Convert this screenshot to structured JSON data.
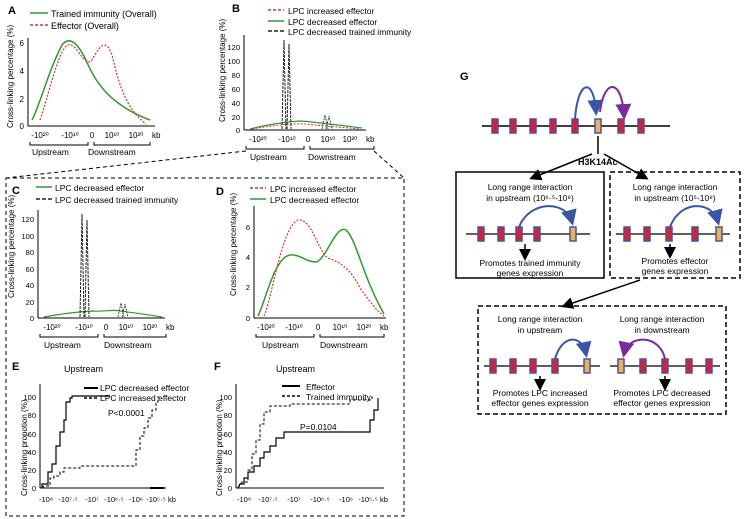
{
  "panels": {
    "A": {
      "label": "A",
      "legend": [
        "Trained immunity (Overall)",
        "Effector  (Overall)"
      ],
      "ylabel": "Cross-linking percentage (%)",
      "yticks": [
        "0",
        "2",
        "4",
        "6"
      ],
      "xticks": [
        "-10²⁰",
        "-10¹⁰",
        "0",
        "10¹⁰",
        "10²⁰"
      ],
      "unit": "kb",
      "regions": [
        "Upstream",
        "Downstream"
      ]
    },
    "B": {
      "label": "B",
      "legend": [
        "LPC increased effector",
        "LPC decreased effector",
        "LPC decreased trained immunity"
      ],
      "ylabel": "Cross-linking percentage (%)",
      "yticks": [
        "0",
        "20",
        "40",
        "60",
        "80",
        "100",
        "120"
      ],
      "xticks": [
        "-10²⁰",
        "-10¹⁰",
        "0",
        "10¹⁰",
        "10²⁰"
      ],
      "unit": "kb",
      "regions": [
        "Upstream",
        "Downstream"
      ]
    },
    "C": {
      "label": "C",
      "legend": [
        "LPC decreased effector",
        "LPC decreased trained immunity"
      ],
      "ylabel": "Cross-linking percentage (%)",
      "yticks": [
        "0",
        "20",
        "40",
        "60",
        "80",
        "100",
        "120"
      ],
      "xticks": [
        "-10²⁰",
        "-10¹⁰",
        "0",
        "10¹⁰",
        "10²⁰"
      ],
      "unit": "kb",
      "regions": [
        "Upstream",
        "Downstream"
      ]
    },
    "D": {
      "label": "D",
      "legend": [
        "LPC increased effector",
        "LPC decreased effector"
      ],
      "ylabel": "Cross-linking percentage (%)",
      "yticks": [
        "0",
        "2",
        "4",
        "6"
      ],
      "xticks": [
        "-10²⁰",
        "-10¹⁰",
        "0",
        "10¹⁰",
        "10²⁰"
      ],
      "unit": "kb",
      "regions": [
        "Upstream",
        "Downstream"
      ]
    },
    "E": {
      "label": "E",
      "title": "Upstream",
      "legend": [
        "LPC decreased effector",
        "LPC increased effector"
      ],
      "ylabel": "Cross-linking propotion (%)",
      "yticks": [
        "0",
        "20",
        "40",
        "60",
        "80",
        "100"
      ],
      "xticks": [
        "-10⁸",
        "-10⁷·⁵",
        "-10⁷",
        "-10⁶·⁵",
        "-10⁶",
        "-10⁵·⁵"
      ],
      "unit": "kb",
      "pvalue": "P<0.0001"
    },
    "F": {
      "label": "F",
      "title": "Upstream",
      "legend": [
        "Effector",
        "Trained immunity"
      ],
      "ylabel": "Cross-linking propotion (%)",
      "yticks": [
        "0",
        "20",
        "40",
        "60",
        "80",
        "100"
      ],
      "xticks": [
        "-10⁸",
        "-10⁷·⁵",
        "-10⁷",
        "-10⁶·⁵",
        "-10⁶",
        "-10⁵·⁵"
      ],
      "unit": "kb",
      "pvalue": "P=0.0104"
    },
    "G": {
      "label": "G",
      "mark": "H3K14Ac",
      "left_box": {
        "title_line1": "Long range interaction",
        "title_line2": "in upstream (10⁶·⁵-10⁸)",
        "result_line1": "Promotes trained immunity",
        "result_line2": "genes expression"
      },
      "right_box": {
        "title_line1": "Long range interaction",
        "title_line2": "in upstream (10⁵-10⁸)",
        "result_line1": "Promotes effector",
        "result_line2": "genes expression"
      },
      "bottom_left": {
        "title_line1": "Long range interaction",
        "title_line2": "in upstream",
        "result_line1": "Promotes LPC increased",
        "result_line2": "effector genes expression"
      },
      "bottom_right": {
        "title_line1": "Long range interaction",
        "title_line2": "in downstream",
        "result_line1": "Promotes LPC decreased",
        "result_line2": "effector genes expression"
      }
    }
  },
  "colors": {
    "green": "#2e9a2e",
    "red": "#e03030",
    "dark": "#222222",
    "gene_red": "#d3232e",
    "gene_blue": "#4f4fa6",
    "gene_gold": "#e8b452",
    "arc_blue": "#3a55a6",
    "arc_purple": "#7a2a99"
  }
}
